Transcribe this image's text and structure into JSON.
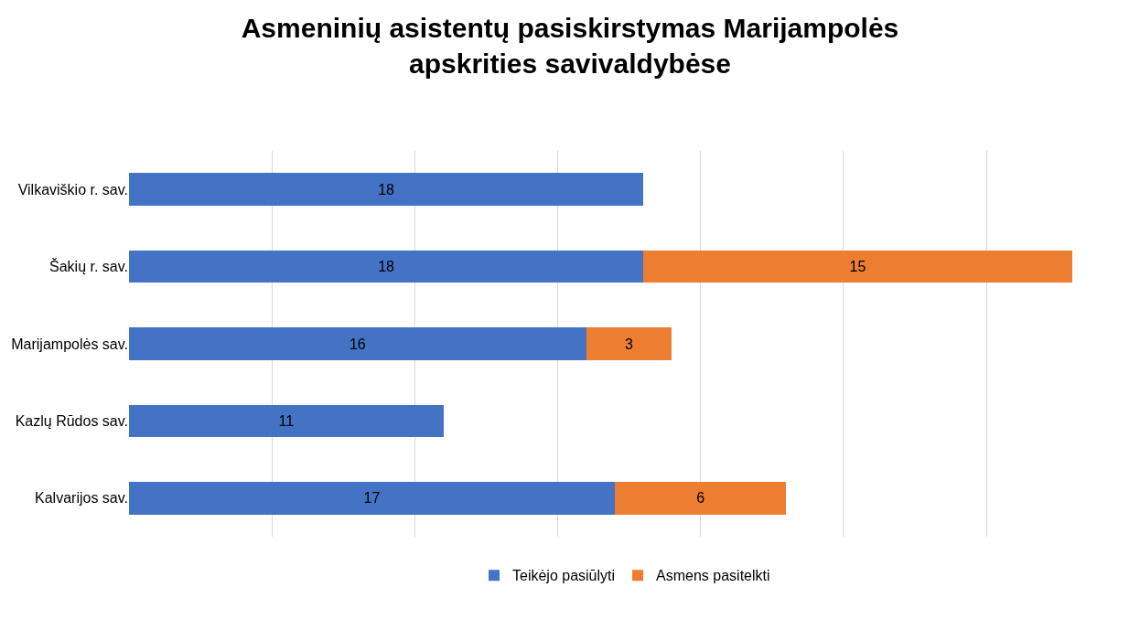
{
  "chart_data": {
    "type": "bar",
    "orientation": "horizontal",
    "stacked": true,
    "title": "Asmeninių asistentų pasiskirstymas Marijampolės apskrities savivaldybėse",
    "categories": [
      "Vilkaviškio r. sav.",
      "Šakių r. sav.",
      "Marijampolės sav.",
      "Kazlų Rūdos sav.",
      "Kalvarijos sav."
    ],
    "series": [
      {
        "name": "Teikėjo pasiūlyti",
        "color": "#4472c4",
        "values": [
          18,
          18,
          16,
          11,
          17
        ]
      },
      {
        "name": "Asmens pasitelkti",
        "color": "#ed7d31",
        "values": [
          null,
          15,
          3,
          null,
          6
        ]
      }
    ],
    "tick_labels": "y",
    "grid": "x",
    "legend": "bottom",
    "data_labels": true
  }
}
